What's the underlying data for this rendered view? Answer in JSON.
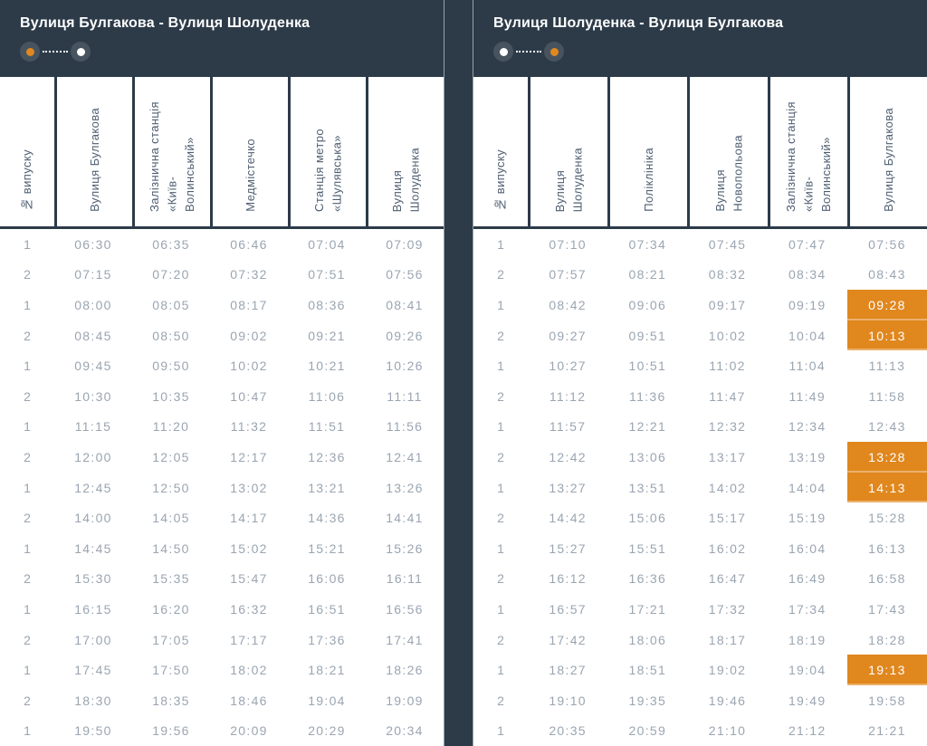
{
  "page": {
    "background_color": "#2d3b49",
    "accent_orange": "#e0871e",
    "table_text_color": "#9aa5b1"
  },
  "left_table": {
    "title": "Вулиця Булгакова - Вулиця Шолуденка",
    "indicator": {
      "start_color": "#e0871e",
      "end_color": "#ffffff"
    },
    "columns": [
      [
        "№ випуску"
      ],
      [
        "Вулиця Булгакова"
      ],
      [
        "Залізнична станція",
        "«Київ-",
        "Волинський»"
      ],
      [
        "Медмістечко"
      ],
      [
        "Станція метро",
        "«Шулявська»"
      ],
      [
        "Вулиця",
        "Шолуденка"
      ]
    ],
    "rows": [
      [
        "1",
        "06:30",
        "06:35",
        "06:46",
        "07:04",
        "07:09"
      ],
      [
        "2",
        "07:15",
        "07:20",
        "07:32",
        "07:51",
        "07:56"
      ],
      [
        "1",
        "08:00",
        "08:05",
        "08:17",
        "08:36",
        "08:41"
      ],
      [
        "2",
        "08:45",
        "08:50",
        "09:02",
        "09:21",
        "09:26"
      ],
      [
        "1",
        "09:45",
        "09:50",
        "10:02",
        "10:21",
        "10:26"
      ],
      [
        "2",
        "10:30",
        "10:35",
        "10:47",
        "11:06",
        "11:11"
      ],
      [
        "1",
        "11:15",
        "11:20",
        "11:32",
        "11:51",
        "11:56"
      ],
      [
        "2",
        "12:00",
        "12:05",
        "12:17",
        "12:36",
        "12:41"
      ],
      [
        "1",
        "12:45",
        "12:50",
        "13:02",
        "13:21",
        "13:26"
      ],
      [
        "2",
        "14:00",
        "14:05",
        "14:17",
        "14:36",
        "14:41"
      ],
      [
        "1",
        "14:45",
        "14:50",
        "15:02",
        "15:21",
        "15:26"
      ],
      [
        "2",
        "15:30",
        "15:35",
        "15:47",
        "16:06",
        "16:11"
      ],
      [
        "1",
        "16:15",
        "16:20",
        "16:32",
        "16:51",
        "16:56"
      ],
      [
        "2",
        "17:00",
        "17:05",
        "17:17",
        "17:36",
        "17:41"
      ],
      [
        "1",
        "17:45",
        "17:50",
        "18:02",
        "18:21",
        "18:26"
      ],
      [
        "2",
        "18:30",
        "18:35",
        "18:46",
        "19:04",
        "19:09"
      ],
      [
        "1",
        "19:50",
        "19:56",
        "20:09",
        "20:29",
        "20:34"
      ]
    ],
    "highlight_cells": []
  },
  "right_table": {
    "title": "Вулиця Шолуденка - Вулиця Булгакова",
    "indicator": {
      "start_color": "#ffffff",
      "end_color": "#e0871e"
    },
    "columns": [
      [
        "№ випуску"
      ],
      [
        "Вулиця",
        "Шолуденка"
      ],
      [
        "Поліклініка"
      ],
      [
        "Вулиця",
        "Новопольова"
      ],
      [
        "Залізнична станція",
        "«Київ-",
        "Волинський»"
      ],
      [
        "Вулиця Булгакова"
      ]
    ],
    "rows": [
      [
        "1",
        "07:10",
        "07:34",
        "07:45",
        "07:47",
        "07:56"
      ],
      [
        "2",
        "07:57",
        "08:21",
        "08:32",
        "08:34",
        "08:43"
      ],
      [
        "1",
        "08:42",
        "09:06",
        "09:17",
        "09:19",
        "09:28"
      ],
      [
        "2",
        "09:27",
        "09:51",
        "10:02",
        "10:04",
        "10:13"
      ],
      [
        "1",
        "10:27",
        "10:51",
        "11:02",
        "11:04",
        "11:13"
      ],
      [
        "2",
        "11:12",
        "11:36",
        "11:47",
        "11:49",
        "11:58"
      ],
      [
        "1",
        "11:57",
        "12:21",
        "12:32",
        "12:34",
        "12:43"
      ],
      [
        "2",
        "12:42",
        "13:06",
        "13:17",
        "13:19",
        "13:28"
      ],
      [
        "1",
        "13:27",
        "13:51",
        "14:02",
        "14:04",
        "14:13"
      ],
      [
        "2",
        "14:42",
        "15:06",
        "15:17",
        "15:19",
        "15:28"
      ],
      [
        "1",
        "15:27",
        "15:51",
        "16:02",
        "16:04",
        "16:13"
      ],
      [
        "2",
        "16:12",
        "16:36",
        "16:47",
        "16:49",
        "16:58"
      ],
      [
        "1",
        "16:57",
        "17:21",
        "17:32",
        "17:34",
        "17:43"
      ],
      [
        "2",
        "17:42",
        "18:06",
        "18:17",
        "18:19",
        "18:28"
      ],
      [
        "1",
        "18:27",
        "18:51",
        "19:02",
        "19:04",
        "19:13"
      ],
      [
        "2",
        "19:10",
        "19:35",
        "19:46",
        "19:49",
        "19:58"
      ],
      [
        "1",
        "20:35",
        "20:59",
        "21:10",
        "21:12",
        "21:21"
      ]
    ],
    "highlight_cells": [
      [
        2,
        5
      ],
      [
        3,
        5
      ],
      [
        7,
        5
      ],
      [
        8,
        5
      ],
      [
        14,
        5
      ]
    ]
  }
}
